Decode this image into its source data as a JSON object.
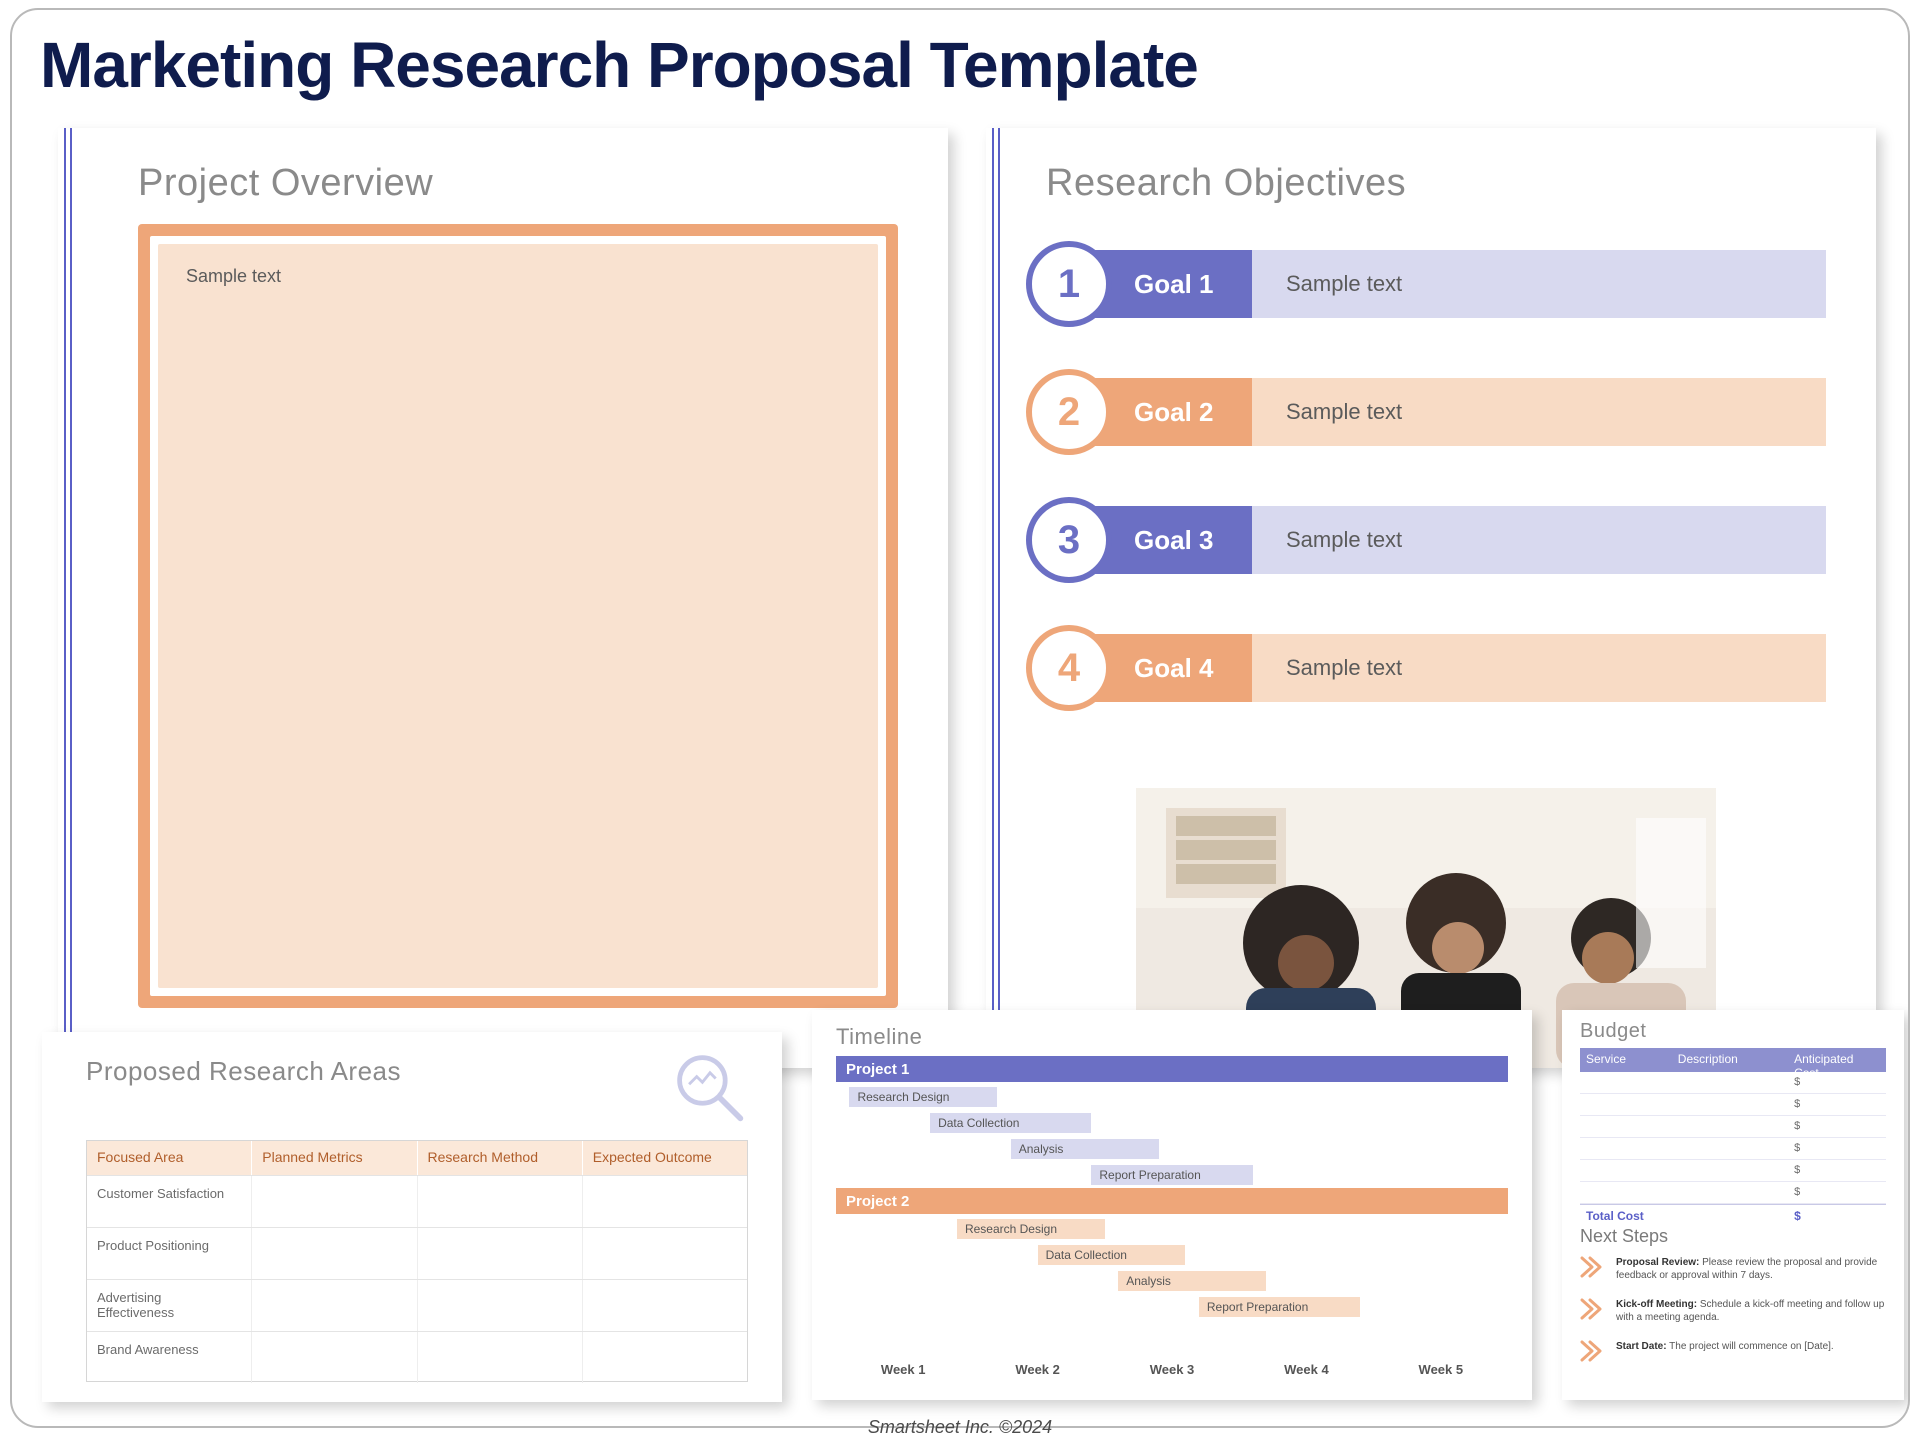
{
  "colors": {
    "title": "#0f1c4d",
    "heading_grey": "#8a8a8a",
    "panel_rule": "#5a5fc7",
    "orange_dark": "#eea679",
    "orange_light": "#f8dbc5",
    "orange_fill": "#f9e2d0",
    "purple_dark": "#6b6fc4",
    "purple_light": "#d8d9ef",
    "table_head_orange": "#fbe8d9",
    "table_head_text": "#b05e2b",
    "budget_head": "#8d90cf",
    "budget_total_text": "#5a5fc7",
    "text_mid": "#5b5b5b"
  },
  "title": "Marketing Research Proposal Template",
  "overview": {
    "heading": "Project Overview",
    "sample": "Sample text"
  },
  "objectives": {
    "heading": "Research Objectives",
    "goals": [
      {
        "n": "1",
        "label": "Goal 1",
        "desc": "Sample text",
        "style": "purple"
      },
      {
        "n": "2",
        "label": "Goal 2",
        "desc": "Sample text",
        "style": "orange"
      },
      {
        "n": "3",
        "label": "Goal 3",
        "desc": "Sample text",
        "style": "purple"
      },
      {
        "n": "4",
        "label": "Goal 4",
        "desc": "Sample text",
        "style": "orange"
      }
    ]
  },
  "research_areas": {
    "heading": "Proposed Research Areas",
    "columns": [
      "Focused Area",
      "Planned Metrics",
      "Research Method",
      "Expected Outcome"
    ],
    "rows": [
      [
        "Customer Satisfaction",
        "",
        "",
        ""
      ],
      [
        "Product Positioning",
        "",
        "",
        ""
      ],
      [
        "Advertising Effectiveness",
        "",
        "",
        ""
      ],
      [
        "Brand Awareness",
        "",
        "",
        ""
      ]
    ]
  },
  "timeline": {
    "heading": "Timeline",
    "weeks": [
      "Week 1",
      "Week 2",
      "Week 3",
      "Week 4",
      "Week 5"
    ],
    "projects": [
      {
        "name": "Project 1",
        "style": "purple",
        "tasks": [
          {
            "label": "Research Design",
            "start_pct": 2,
            "width_pct": 22
          },
          {
            "label": "Data Collection",
            "start_pct": 14,
            "width_pct": 24
          },
          {
            "label": "Analysis",
            "start_pct": 26,
            "width_pct": 22
          },
          {
            "label": "Report Preparation",
            "start_pct": 38,
            "width_pct": 24
          }
        ]
      },
      {
        "name": "Project 2",
        "style": "orange",
        "tasks": [
          {
            "label": "Research Design",
            "start_pct": 18,
            "width_pct": 22
          },
          {
            "label": "Data Collection",
            "start_pct": 30,
            "width_pct": 22
          },
          {
            "label": "Analysis",
            "start_pct": 42,
            "width_pct": 22
          },
          {
            "label": "Report Preparation",
            "start_pct": 54,
            "width_pct": 24
          }
        ]
      }
    ]
  },
  "budget": {
    "heading": "Budget",
    "columns": [
      "Service",
      "Description",
      "Anticipated Cost"
    ],
    "rows": [
      [
        "",
        "",
        "$"
      ],
      [
        "",
        "",
        "$"
      ],
      [
        "",
        "",
        "$"
      ],
      [
        "",
        "",
        "$"
      ],
      [
        "",
        "",
        "$"
      ],
      [
        "",
        "",
        "$"
      ]
    ],
    "total_label": "Total Cost",
    "total_value": "$"
  },
  "next_steps": {
    "heading": "Next Steps",
    "items": [
      {
        "title": "Proposal Review:",
        "text": " Please review the proposal and provide feedback or approval within 7 days."
      },
      {
        "title": "Kick-off Meeting:",
        "text": " Schedule a kick-off meeting and follow up with a meeting agenda."
      },
      {
        "title": "Start Date:",
        "text": " The project will commence on [Date]."
      }
    ]
  },
  "footer": "Smartsheet Inc. ©2024"
}
